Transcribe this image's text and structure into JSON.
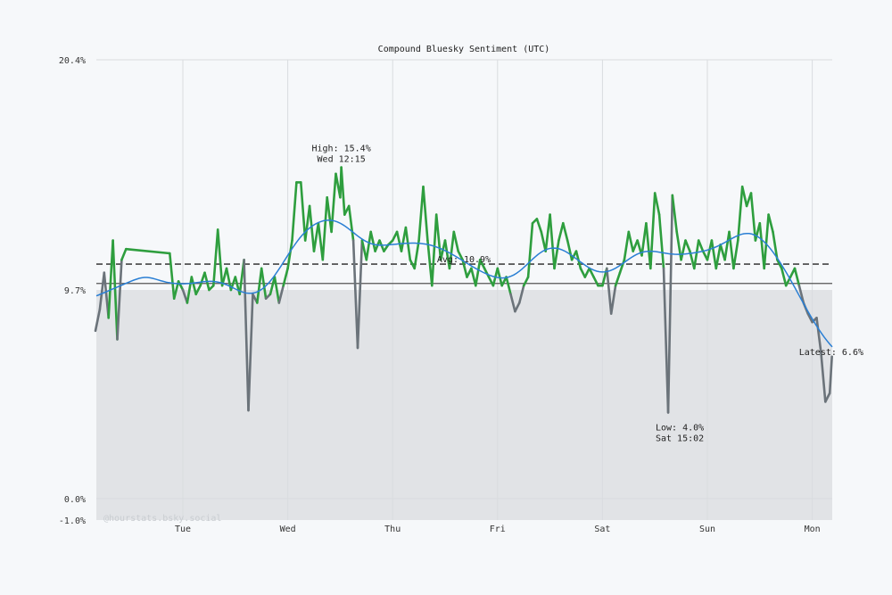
{
  "chart_data": {
    "type": "line",
    "title": "Compound Bluesky Sentiment (UTC)",
    "xlabel": "",
    "ylabel": "",
    "ylim": [
      -1.0,
      20.4
    ],
    "y_ticks": [
      "20.4%",
      "9.7%",
      "0.0%",
      "-1.0%"
    ],
    "y_tick_values": [
      20.4,
      9.7,
      0.0,
      -1.0
    ],
    "x_ticks": [
      "Tue",
      "Wed",
      "Thu",
      "Fri",
      "Sat",
      "Sun",
      "Mon"
    ],
    "grid": "vertical day lines",
    "shaded_below": 9.7,
    "reference_line": 10.0,
    "average": 10.9,
    "colors": {
      "above": "#2e9e3e",
      "below": "#6b737a",
      "trend": "#2a7fd4",
      "shade": "#e1e3e6",
      "background": "#f6f8fa"
    },
    "annotations": {
      "high": [
        "High: 15.4%",
        "Wed 12:15"
      ],
      "avg": "Avg: 10.9%",
      "low": [
        "Low: 4.0%",
        "Sat 15:02"
      ],
      "latest": "Latest: 6.6%"
    },
    "watermark": "@hourstats.bsky.social",
    "points": [
      [
        "Mon 04:00",
        7.8
      ],
      [
        "Mon 05:00",
        8.8
      ],
      [
        "Mon 06:00",
        10.5
      ],
      [
        "Mon 07:00",
        8.4
      ],
      [
        "Mon 08:00",
        12.0
      ],
      [
        "Mon 09:00",
        7.4
      ],
      [
        "Mon 10:00",
        11.1
      ],
      [
        "Mon 11:00",
        11.6
      ],
      [
        "Mon 21:00",
        11.4
      ],
      [
        "Mon 22:00",
        9.3
      ],
      [
        "Mon 23:00",
        10.1
      ],
      [
        "Tue 00:00",
        9.7
      ],
      [
        "Tue 01:00",
        9.1
      ],
      [
        "Tue 02:00",
        10.3
      ],
      [
        "Tue 03:00",
        9.5
      ],
      [
        "Tue 04:00",
        9.9
      ],
      [
        "Tue 05:00",
        10.5
      ],
      [
        "Tue 06:00",
        9.7
      ],
      [
        "Tue 07:00",
        9.9
      ],
      [
        "Tue 08:00",
        12.5
      ],
      [
        "Tue 09:00",
        9.9
      ],
      [
        "Tue 10:00",
        10.7
      ],
      [
        "Tue 11:00",
        9.7
      ],
      [
        "Tue 12:00",
        10.3
      ],
      [
        "Tue 13:00",
        9.5
      ],
      [
        "Tue 14:00",
        11.1
      ],
      [
        "Tue 15:00",
        4.1
      ],
      [
        "Tue 16:00",
        9.5
      ],
      [
        "Tue 17:00",
        9.1
      ],
      [
        "Tue 18:00",
        10.7
      ],
      [
        "Tue 19:00",
        9.3
      ],
      [
        "Tue 20:00",
        9.5
      ],
      [
        "Tue 21:00",
        10.3
      ],
      [
        "Tue 22:00",
        9.1
      ],
      [
        "Tue 23:00",
        9.9
      ],
      [
        "Wed 00:00",
        10.7
      ],
      [
        "Wed 01:00",
        12.0
      ],
      [
        "Wed 02:00",
        14.7
      ],
      [
        "Wed 03:00",
        14.7
      ],
      [
        "Wed 04:00",
        12.0
      ],
      [
        "Wed 05:00",
        13.6
      ],
      [
        "Wed 06:00",
        11.5
      ],
      [
        "Wed 07:00",
        12.8
      ],
      [
        "Wed 08:00",
        11.1
      ],
      [
        "Wed 09:00",
        14.0
      ],
      [
        "Wed 10:00",
        12.4
      ],
      [
        "Wed 11:00",
        15.1
      ],
      [
        "Wed 12:00",
        14.0
      ],
      [
        "Wed 12:15",
        15.4
      ],
      [
        "Wed 13:00",
        13.2
      ],
      [
        "Wed 14:00",
        13.6
      ],
      [
        "Wed 15:00",
        12.0
      ],
      [
        "Wed 16:00",
        7.0
      ],
      [
        "Wed 17:00",
        12.0
      ],
      [
        "Wed 18:00",
        11.1
      ],
      [
        "Wed 19:00",
        12.4
      ],
      [
        "Wed 20:00",
        11.5
      ],
      [
        "Wed 21:00",
        12.0
      ],
      [
        "Wed 22:00",
        11.5
      ],
      [
        "Wed 23:00",
        11.8
      ],
      [
        "Thu 00:00",
        12.0
      ],
      [
        "Thu 01:00",
        12.4
      ],
      [
        "Thu 02:00",
        11.5
      ],
      [
        "Thu 03:00",
        12.6
      ],
      [
        "Thu 04:00",
        11.1
      ],
      [
        "Thu 05:00",
        10.7
      ],
      [
        "Thu 06:00",
        12.0
      ],
      [
        "Thu 07:00",
        14.5
      ],
      [
        "Thu 08:00",
        12.0
      ],
      [
        "Thu 09:00",
        9.9
      ],
      [
        "Thu 10:00",
        13.2
      ],
      [
        "Thu 11:00",
        11.1
      ],
      [
        "Thu 12:00",
        12.0
      ],
      [
        "Thu 13:00",
        10.7
      ],
      [
        "Thu 14:00",
        12.4
      ],
      [
        "Thu 15:00",
        11.5
      ],
      [
        "Thu 16:00",
        11.1
      ],
      [
        "Thu 17:00",
        10.3
      ],
      [
        "Thu 18:00",
        10.7
      ],
      [
        "Thu 19:00",
        9.9
      ],
      [
        "Thu 20:00",
        11.1
      ],
      [
        "Thu 21:00",
        10.7
      ],
      [
        "Thu 22:00",
        10.3
      ],
      [
        "Thu 23:00",
        9.9
      ],
      [
        "Fri 00:00",
        10.7
      ],
      [
        "Fri 01:00",
        9.9
      ],
      [
        "Fri 02:00",
        10.3
      ],
      [
        "Fri 03:00",
        9.5
      ],
      [
        "Fri 04:00",
        8.7
      ],
      [
        "Fri 05:00",
        9.1
      ],
      [
        "Fri 06:00",
        9.9
      ],
      [
        "Fri 07:00",
        10.3
      ],
      [
        "Fri 08:00",
        12.8
      ],
      [
        "Fri 09:00",
        13.0
      ],
      [
        "Fri 10:00",
        12.4
      ],
      [
        "Fri 11:00",
        11.5
      ],
      [
        "Fri 12:00",
        13.2
      ],
      [
        "Fri 13:00",
        10.7
      ],
      [
        "Fri 14:00",
        12.0
      ],
      [
        "Fri 15:00",
        12.8
      ],
      [
        "Fri 16:00",
        12.0
      ],
      [
        "Fri 17:00",
        11.1
      ],
      [
        "Fri 18:00",
        11.5
      ],
      [
        "Fri 19:00",
        10.7
      ],
      [
        "Fri 20:00",
        10.3
      ],
      [
        "Fri 21:00",
        10.7
      ],
      [
        "Fri 22:00",
        10.3
      ],
      [
        "Fri 23:00",
        9.9
      ],
      [
        "Sat 00:00",
        9.9
      ],
      [
        "Sat 01:00",
        10.7
      ],
      [
        "Sat 02:00",
        8.6
      ],
      [
        "Sat 03:00",
        9.9
      ],
      [
        "Sat 04:00",
        10.5
      ],
      [
        "Sat 05:00",
        11.1
      ],
      [
        "Sat 06:00",
        12.4
      ],
      [
        "Sat 07:00",
        11.5
      ],
      [
        "Sat 08:00",
        12.0
      ],
      [
        "Sat 09:00",
        11.3
      ],
      [
        "Sat 10:00",
        12.8
      ],
      [
        "Sat 11:00",
        10.7
      ],
      [
        "Sat 12:00",
        14.2
      ],
      [
        "Sat 13:00",
        13.2
      ],
      [
        "Sat 14:00",
        10.7
      ],
      [
        "Sat 15:02",
        4.0
      ],
      [
        "Sat 16:00",
        14.1
      ],
      [
        "Sat 17:00",
        12.4
      ],
      [
        "Sat 18:00",
        11.1
      ],
      [
        "Sat 19:00",
        12.0
      ],
      [
        "Sat 20:00",
        11.5
      ],
      [
        "Sat 21:00",
        10.7
      ],
      [
        "Sat 22:00",
        12.0
      ],
      [
        "Sat 23:00",
        11.5
      ],
      [
        "Sun 00:00",
        11.1
      ],
      [
        "Sun 01:00",
        12.0
      ],
      [
        "Sun 02:00",
        10.7
      ],
      [
        "Sun 03:00",
        11.8
      ],
      [
        "Sun 04:00",
        11.1
      ],
      [
        "Sun 05:00",
        12.4
      ],
      [
        "Sun 06:00",
        10.7
      ],
      [
        "Sun 07:00",
        12.0
      ],
      [
        "Sun 08:00",
        14.5
      ],
      [
        "Sun 09:00",
        13.6
      ],
      [
        "Sun 10:00",
        14.2
      ],
      [
        "Sun 11:00",
        12.0
      ],
      [
        "Sun 12:00",
        12.8
      ],
      [
        "Sun 13:00",
        10.7
      ],
      [
        "Sun 14:00",
        13.2
      ],
      [
        "Sun 15:00",
        12.4
      ],
      [
        "Sun 16:00",
        11.1
      ],
      [
        "Sun 17:00",
        10.7
      ],
      [
        "Sun 18:00",
        9.9
      ],
      [
        "Sun 19:00",
        10.3
      ],
      [
        "Sun 20:00",
        10.7
      ],
      [
        "Sun 21:00",
        9.9
      ],
      [
        "Sun 22:00",
        9.1
      ],
      [
        "Sun 23:00",
        8.6
      ],
      [
        "Mon 00:00",
        8.2
      ],
      [
        "Mon 01:00",
        8.4
      ],
      [
        "Mon 02:00",
        6.8
      ],
      [
        "Mon 03:00",
        4.5
      ],
      [
        "Mon 04:00",
        4.9
      ],
      [
        "Mon 04:30",
        6.6
      ]
    ]
  }
}
